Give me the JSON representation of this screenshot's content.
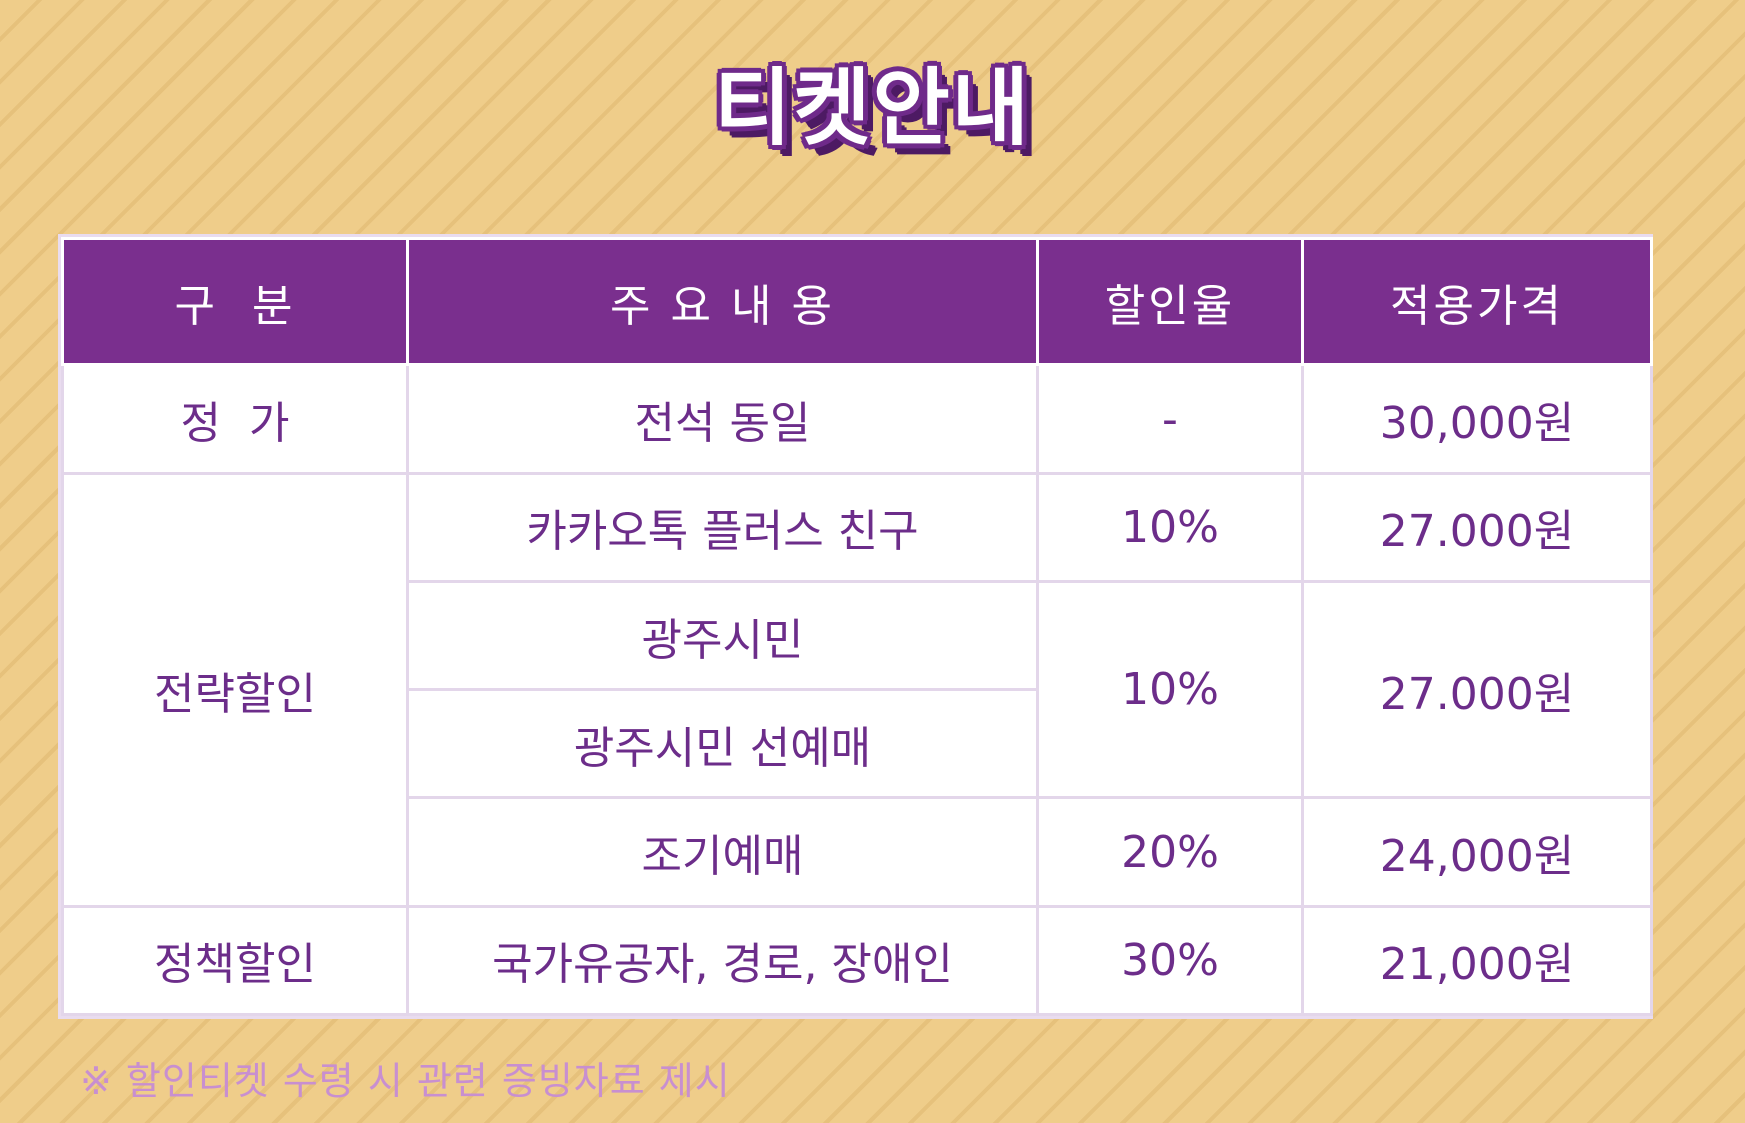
{
  "title": "티켓안내",
  "table": {
    "headers": [
      "구  분",
      "주 요 내 용",
      "할인율",
      "적용가격"
    ],
    "rows": {
      "regular": {
        "category": "정  가",
        "content": "전석 동일",
        "rate": "-",
        "price": "30,000원"
      },
      "strategic": {
        "category": "전략할인",
        "kakao": {
          "content": "카카오톡 플러스 친구",
          "rate": "10%",
          "price": "27.000원"
        },
        "citizen": {
          "content": "광주시민"
        },
        "citizen_presale": {
          "content": "광주시민 선예매"
        },
        "citizen_rate": "10%",
        "citizen_price": "27.000원",
        "early": {
          "content": "조기예매",
          "rate": "20%",
          "price": "24,000원"
        }
      },
      "policy": {
        "category": "정책할인",
        "content": "국가유공자, 경로, 장애인",
        "rate": "30%",
        "price": "21,000원"
      }
    }
  },
  "note": "※ 할인티켓 수령 시 관련 증빙자료 제시"
}
